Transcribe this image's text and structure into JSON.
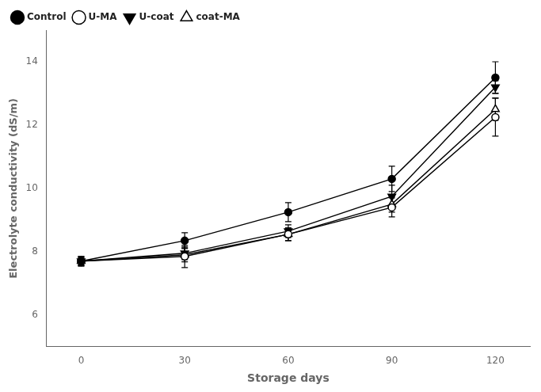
{
  "chart_data": {
    "type": "line",
    "xlabel": "Storage days",
    "ylabel": "Electrolyte conductivity (dS/m)",
    "x": [
      0,
      30,
      60,
      90,
      120
    ],
    "xlim": [
      -10,
      130
    ],
    "xticks": [
      0,
      30,
      60,
      90,
      120
    ],
    "ylim": [
      5,
      15
    ],
    "yticks": [
      6,
      8,
      10,
      12,
      14
    ],
    "grid": false,
    "legend": "upper left",
    "series": [
      {
        "name": "Control",
        "color": "#000000",
        "marker": "filled-circle",
        "line_style": "solid",
        "values": [
          7.7,
          8.35,
          9.25,
          10.3,
          13.5
        ],
        "errors": [
          0.15,
          0.25,
          0.3,
          0.4,
          0.5
        ]
      },
      {
        "name": "U-MA",
        "color": "#000000",
        "marker": "open-circle",
        "line_style": "solid",
        "values": [
          7.7,
          7.85,
          8.55,
          9.4,
          12.25
        ],
        "errors": [
          0.15,
          0.35,
          0.2,
          0.3,
          0.6
        ]
      },
      {
        "name": "U-coat",
        "color": "#000000",
        "marker": "filled-triangle-down",
        "line_style": "solid",
        "values": [
          7.7,
          7.95,
          8.65,
          9.75,
          13.2
        ],
        "errors": [
          0.12,
          0.2,
          0.2,
          0.35,
          0.2
        ]
      },
      {
        "name": "coat-MA",
        "color": "#000000",
        "marker": "open-triangle-up",
        "line_style": "solid",
        "values": [
          7.7,
          7.9,
          8.55,
          9.5,
          12.5
        ],
        "errors": [
          0.12,
          0.22,
          0.2,
          0.25,
          0.35
        ]
      }
    ]
  }
}
